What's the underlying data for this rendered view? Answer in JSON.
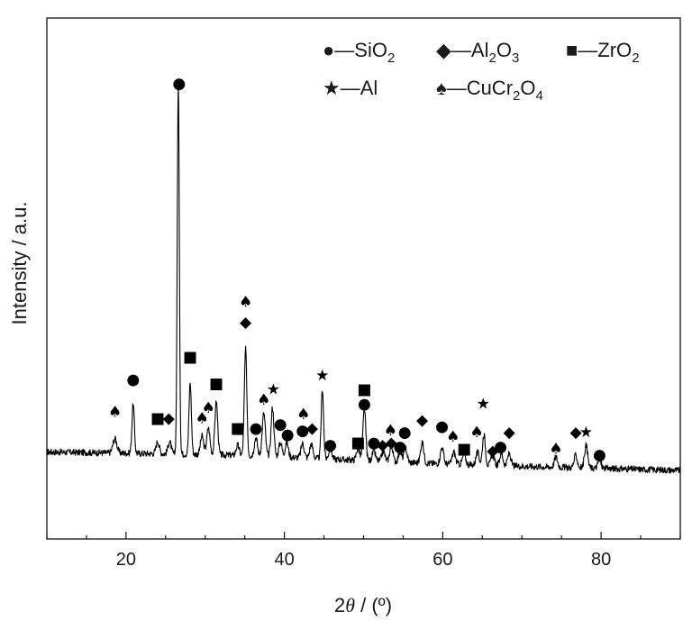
{
  "chart_data": {
    "type": "line",
    "title": "",
    "xlabel": "2θ / (º)",
    "xlabel_parts": {
      "var": "2",
      "theta": "θ",
      "unit": " / (º)"
    },
    "ylabel": "Intensity / a.u.",
    "xlim": [
      10,
      90
    ],
    "ylim": [
      0,
      100
    ],
    "grid": false,
    "legend_position": "top-right",
    "x_ticks": [
      "20",
      "40",
      "60",
      "80"
    ],
    "line_color": "#000000",
    "legend": [
      {
        "glyph": "●",
        "base": "—SiO",
        "sub1": "2",
        "mid": "",
        "sub2": ""
      },
      {
        "glyph": "◆",
        "base": "—Al",
        "sub1": "2",
        "mid": "O",
        "sub2": "3"
      },
      {
        "glyph": "■",
        "base": "—ZrO",
        "sub1": "2",
        "mid": "",
        "sub2": ""
      },
      {
        "glyph": "★",
        "base": "—Al",
        "sub1": "",
        "mid": "",
        "sub2": ""
      },
      {
        "glyph": "♠",
        "base": "—CuCr",
        "sub1": "2",
        "mid": "O",
        "sub2": "4"
      }
    ],
    "baseline": [
      [
        10,
        4.1
      ],
      [
        20,
        3.8
      ],
      [
        30,
        3.5
      ],
      [
        40,
        2.9
      ],
      [
        50,
        2.0
      ],
      [
        60,
        1.2
      ],
      [
        70,
        0.6
      ],
      [
        80,
        0.1
      ],
      [
        90,
        -0.4
      ]
    ],
    "peaks": [
      {
        "x": 18.6,
        "h": 3.5,
        "w": 0.25
      },
      {
        "x": 20.9,
        "h": 12.0,
        "w": 0.15
      },
      {
        "x": 24.0,
        "h": 3.0,
        "w": 0.2
      },
      {
        "x": 25.5,
        "h": 3.0,
        "w": 0.2
      },
      {
        "x": 26.6,
        "h": 91.0,
        "w": 0.13
      },
      {
        "x": 28.1,
        "h": 17.5,
        "w": 0.15
      },
      {
        "x": 29.6,
        "h": 4.5,
        "w": 0.2
      },
      {
        "x": 30.4,
        "h": 6.5,
        "w": 0.2
      },
      {
        "x": 31.4,
        "h": 13.0,
        "w": 0.18
      },
      {
        "x": 34.1,
        "h": 2.5,
        "w": 0.2
      },
      {
        "x": 35.1,
        "h": 26.0,
        "w": 0.16
      },
      {
        "x": 36.4,
        "h": 4.5,
        "w": 0.2
      },
      {
        "x": 37.4,
        "h": 10.5,
        "w": 0.2
      },
      {
        "x": 38.5,
        "h": 12.0,
        "w": 0.18
      },
      {
        "x": 39.5,
        "h": 3.5,
        "w": 0.2
      },
      {
        "x": 40.3,
        "h": 3.5,
        "w": 0.2
      },
      {
        "x": 42.3,
        "h": 3.5,
        "w": 0.2
      },
      {
        "x": 43.4,
        "h": 3.5,
        "w": 0.2
      },
      {
        "x": 44.8,
        "h": 17.0,
        "w": 0.15
      },
      {
        "x": 45.8,
        "h": 2.5,
        "w": 0.2
      },
      {
        "x": 49.3,
        "h": 3.0,
        "w": 0.2
      },
      {
        "x": 50.1,
        "h": 12.5,
        "w": 0.18
      },
      {
        "x": 51.3,
        "h": 2.5,
        "w": 0.2
      },
      {
        "x": 52.5,
        "h": 2.5,
        "w": 0.2
      },
      {
        "x": 53.5,
        "h": 4.0,
        "w": 0.2
      },
      {
        "x": 54.6,
        "h": 2.5,
        "w": 0.2
      },
      {
        "x": 55.3,
        "h": 3.5,
        "w": 0.2
      },
      {
        "x": 57.4,
        "h": 5.0,
        "w": 0.2
      },
      {
        "x": 59.9,
        "h": 4.0,
        "w": 0.2
      },
      {
        "x": 61.4,
        "h": 3.0,
        "w": 0.2
      },
      {
        "x": 62.7,
        "h": 2.5,
        "w": 0.2
      },
      {
        "x": 64.4,
        "h": 3.0,
        "w": 0.2
      },
      {
        "x": 65.2,
        "h": 7.5,
        "w": 0.18
      },
      {
        "x": 66.3,
        "h": 2.5,
        "w": 0.2
      },
      {
        "x": 67.4,
        "h": 3.0,
        "w": 0.2
      },
      {
        "x": 68.4,
        "h": 3.0,
        "w": 0.2
      },
      {
        "x": 74.3,
        "h": 2.5,
        "w": 0.2
      },
      {
        "x": 76.8,
        "h": 3.0,
        "w": 0.2
      },
      {
        "x": 78.1,
        "h": 5.5,
        "w": 0.2
      },
      {
        "x": 79.8,
        "h": 2.0,
        "w": 0.2
      }
    ],
    "markers": [
      {
        "x": 18.6,
        "y": 14.0,
        "glyph": "♠",
        "phase": "CuCr2O4"
      },
      {
        "x": 20.9,
        "y": 22.0,
        "glyph": "●",
        "phase": "SiO2"
      },
      {
        "x": 24.0,
        "y": 12.5,
        "glyph": "■",
        "phase": "ZrO2"
      },
      {
        "x": 25.4,
        "y": 12.5,
        "glyph": "◆",
        "phase": "Al2O3"
      },
      {
        "x": 26.7,
        "y": 94.5,
        "glyph": "●",
        "phase": "SiO2"
      },
      {
        "x": 28.1,
        "y": 27.5,
        "glyph": "■",
        "phase": "ZrO2"
      },
      {
        "x": 29.6,
        "y": 12.5,
        "glyph": "♠",
        "phase": "CuCr2O4"
      },
      {
        "x": 30.4,
        "y": 15.0,
        "glyph": "♠",
        "phase": "CuCr2O4"
      },
      {
        "x": 31.4,
        "y": 21.0,
        "glyph": "■",
        "phase": "ZrO2"
      },
      {
        "x": 34.1,
        "y": 10.0,
        "glyph": "■",
        "phase": "ZrO2"
      },
      {
        "x": 35.1,
        "y": 41.0,
        "glyph": "♠",
        "phase": "CuCr2O4"
      },
      {
        "x": 35.1,
        "y": 36.0,
        "glyph": "◆",
        "phase": "Al2O3"
      },
      {
        "x": 36.4,
        "y": 10.0,
        "glyph": "●",
        "phase": "SiO2"
      },
      {
        "x": 37.4,
        "y": 17.0,
        "glyph": "♠",
        "phase": "CuCr2O4"
      },
      {
        "x": 38.6,
        "y": 19.5,
        "glyph": "★",
        "phase": "Al"
      },
      {
        "x": 39.5,
        "y": 11.0,
        "glyph": "●",
        "phase": "SiO2"
      },
      {
        "x": 40.4,
        "y": 8.5,
        "glyph": "●",
        "phase": "SiO2"
      },
      {
        "x": 42.4,
        "y": 13.5,
        "glyph": "♠",
        "phase": "CuCr2O4"
      },
      {
        "x": 42.3,
        "y": 9.5,
        "glyph": "●",
        "phase": "SiO2"
      },
      {
        "x": 43.5,
        "y": 10.0,
        "glyph": "◆",
        "phase": "Al2O3"
      },
      {
        "x": 44.8,
        "y": 23.0,
        "glyph": "★",
        "phase": "Al"
      },
      {
        "x": 45.8,
        "y": 6.0,
        "glyph": "●",
        "phase": "SiO2"
      },
      {
        "x": 49.3,
        "y": 6.5,
        "glyph": "■",
        "phase": "ZrO2"
      },
      {
        "x": 50.1,
        "y": 19.5,
        "glyph": "■",
        "phase": "ZrO2"
      },
      {
        "x": 50.1,
        "y": 16.0,
        "glyph": "●",
        "phase": "SiO2"
      },
      {
        "x": 51.3,
        "y": 6.5,
        "glyph": "●",
        "phase": "SiO2"
      },
      {
        "x": 52.4,
        "y": 6.0,
        "glyph": "◆",
        "phase": "Al2O3"
      },
      {
        "x": 53.4,
        "y": 9.5,
        "glyph": "♠",
        "phase": "CuCr2O4"
      },
      {
        "x": 53.5,
        "y": 6.5,
        "glyph": "◆",
        "phase": "Al2O3"
      },
      {
        "x": 54.6,
        "y": 5.5,
        "glyph": "●",
        "phase": "SiO2"
      },
      {
        "x": 55.2,
        "y": 9.0,
        "glyph": "●",
        "phase": "SiO2"
      },
      {
        "x": 57.4,
        "y": 12.0,
        "glyph": "◆",
        "phase": "Al2O3"
      },
      {
        "x": 59.9,
        "y": 10.5,
        "glyph": "●",
        "phase": "SiO2"
      },
      {
        "x": 61.3,
        "y": 8.0,
        "glyph": "♠",
        "phase": "CuCr2O4"
      },
      {
        "x": 62.7,
        "y": 5.0,
        "glyph": "■",
        "phase": "ZrO2"
      },
      {
        "x": 64.3,
        "y": 9.0,
        "glyph": "♠",
        "phase": "CuCr2O4"
      },
      {
        "x": 65.1,
        "y": 16.0,
        "glyph": "★",
        "phase": "Al"
      },
      {
        "x": 66.3,
        "y": 4.5,
        "glyph": "◆",
        "phase": "Al2O3"
      },
      {
        "x": 67.3,
        "y": 5.5,
        "glyph": "●",
        "phase": "SiO2"
      },
      {
        "x": 68.4,
        "y": 9.0,
        "glyph": "◆",
        "phase": "Al2O3"
      },
      {
        "x": 74.3,
        "y": 5.0,
        "glyph": "♠",
        "phase": "CuCr2O4"
      },
      {
        "x": 76.8,
        "y": 9.0,
        "glyph": "◆",
        "phase": "Al2O3"
      },
      {
        "x": 78.1,
        "y": 9.0,
        "glyph": "★",
        "phase": "Al"
      },
      {
        "x": 79.8,
        "y": 3.5,
        "glyph": "●",
        "phase": "SiO2"
      }
    ]
  }
}
